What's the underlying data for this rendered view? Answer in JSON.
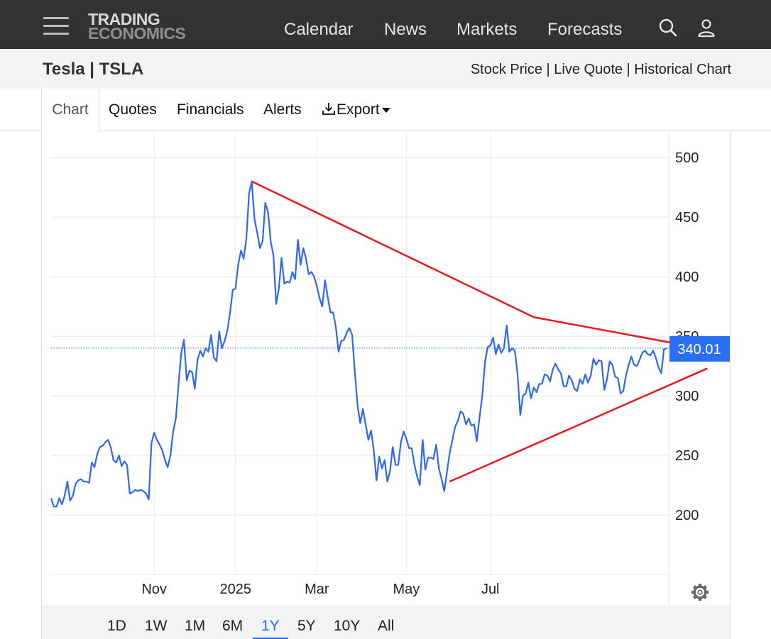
{
  "nav": {
    "logo_line1": "TRADING",
    "logo_line2": "ECONOMICS",
    "links": [
      "Calendar",
      "News",
      "Markets",
      "Forecasts"
    ],
    "icons": [
      "search-icon",
      "user-icon",
      "menu-icon"
    ]
  },
  "header": {
    "title": "Tesla | TSLA",
    "subtitle": "Stock Price | Live Quote | Historical Chart"
  },
  "tabs": {
    "chart": "Chart",
    "quotes": "Quotes",
    "financials": "Financials",
    "alerts": "Alerts",
    "export": "Export"
  },
  "ranges": [
    "1D",
    "1W",
    "1M",
    "6M",
    "1Y",
    "5Y",
    "10Y",
    "All"
  ],
  "active_range": "1Y",
  "colors": {
    "price_line": "#2f66f0",
    "trendline": "#e8191a",
    "price_badge": "#2a6ff0",
    "nav_bg": "#333333"
  },
  "chart_data": {
    "type": "line",
    "series": [
      {
        "values": [
          214,
          207,
          207,
          214,
          209,
          216,
          228,
          212,
          216,
          226,
          229,
          230,
          228,
          228,
          227,
          244,
          240,
          251,
          257,
          258,
          261,
          263,
          257,
          246,
          244,
          250,
          241,
          245,
          242,
          218,
          219,
          221,
          220,
          221,
          220,
          218,
          213,
          260,
          269,
          263,
          259,
          254,
          246,
          240,
          250,
          270,
          281,
          310,
          336,
          347,
          313,
          321,
          320,
          306,
          330,
          338,
          333,
          340,
          337,
          351,
          332,
          329,
          354,
          340,
          346,
          355,
          370,
          389,
          390,
          410,
          422,
          415,
          432,
          470,
          480,
          448,
          437,
          424,
          430,
          462,
          454,
          429,
          418,
          377,
          390,
          416,
          394,
          396,
          395,
          404,
          398,
          431,
          410,
          424,
          415,
          402,
          404,
          400,
          392,
          382,
          375,
          397,
          383,
          370,
          370,
          358,
          337,
          346,
          347,
          353,
          357,
          351,
          320,
          292,
          277,
          289,
          276,
          263,
          271,
          254,
          229,
          249,
          239,
          246,
          228,
          237,
          257,
          242,
          242,
          261,
          270,
          264,
          256,
          256,
          242,
          232,
          225,
          263,
          238,
          248,
          248,
          247,
          259,
          239,
          230,
          220,
          236,
          252,
          263,
          274,
          279,
          287,
          285,
          276,
          281,
          275,
          276,
          262,
          282,
          300,
          328,
          341,
          342,
          349,
          335,
          343,
          336,
          340,
          359,
          337,
          340,
          338,
          319,
          284,
          300,
          302,
          311,
          298,
          307,
          303,
          310,
          310,
          318,
          317,
          312,
          322,
          327,
          322,
          319,
          308,
          308,
          317,
          313,
          306,
          304,
          314,
          310,
          318,
          311,
          317,
          331,
          326,
          330,
          329,
          305,
          314,
          329,
          326,
          316,
          315,
          302,
          304,
          317,
          326,
          333,
          326,
          325,
          330,
          336,
          338,
          335,
          334,
          338,
          332,
          324,
          319,
          339,
          340
        ]
      }
    ],
    "x_ticks": [
      "Nov",
      "2025",
      "Mar",
      "May",
      "Jul"
    ],
    "y_ticks": [
      200,
      250,
      300,
      350,
      400,
      450,
      500
    ],
    "ylim": [
      150,
      515
    ],
    "last_price": "340.01",
    "trendlines": [
      {
        "from": {
          "index": 74,
          "value": 480
        },
        "to": {
          "index": 178,
          "value": 366
        }
      },
      {
        "from": {
          "index": 178,
          "value": 366
        },
        "to": {
          "index": 242,
          "value": 339
        }
      },
      {
        "from": {
          "index": 147,
          "value": 228
        },
        "to": {
          "index": 242,
          "value": 323
        }
      }
    ],
    "grid": true,
    "legend": "none"
  }
}
